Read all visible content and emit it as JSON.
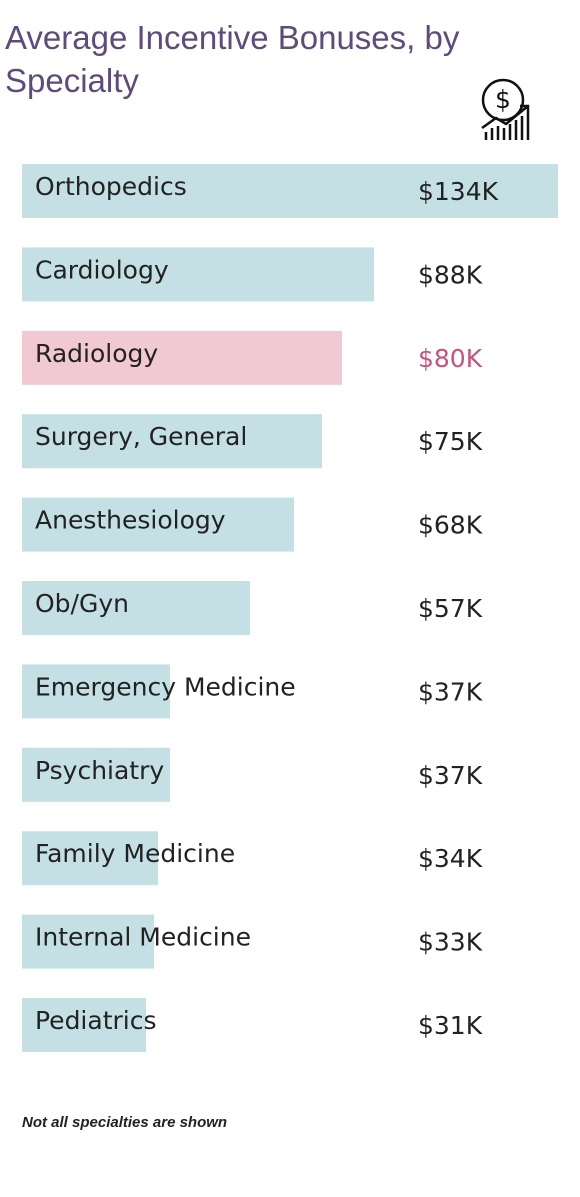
{
  "chart_data": {
    "type": "hbar",
    "title": "Average Incentive Bonuses, by Specialty",
    "categories": [
      "Orthopedics",
      "Cardiology",
      "Radiology",
      "Surgery, General",
      "Anesthesiology",
      "Ob/Gyn",
      "Emergency Medicine",
      "Psychiatry",
      "Family Medicine",
      "Internal Medicine",
      "Pediatrics"
    ],
    "values": [
      134,
      88,
      80,
      75,
      68,
      57,
      37,
      37,
      34,
      33,
      31
    ],
    "value_labels": [
      "$134K",
      "$88K",
      "$80K",
      "$75K",
      "$68K",
      "$57K",
      "$37K",
      "$37K",
      "$34K",
      "$33K",
      "$31K"
    ],
    "colors": [
      "#c4e0e5",
      "#c4e0e5",
      "#f1c9d2",
      "#c4e0e5",
      "#c4e0e5",
      "#c4e0e5",
      "#c4e0e5",
      "#c4e0e5",
      "#c4e0e5",
      "#c4e0e5",
      "#c4e0e5"
    ],
    "value_label_colors": [
      "#222222",
      "#222222",
      "#c9517c",
      "#222222",
      "#222222",
      "#222222",
      "#222222",
      "#222222",
      "#222222",
      "#222222",
      "#222222"
    ],
    "footnote": "Not all specialties are shown"
  }
}
